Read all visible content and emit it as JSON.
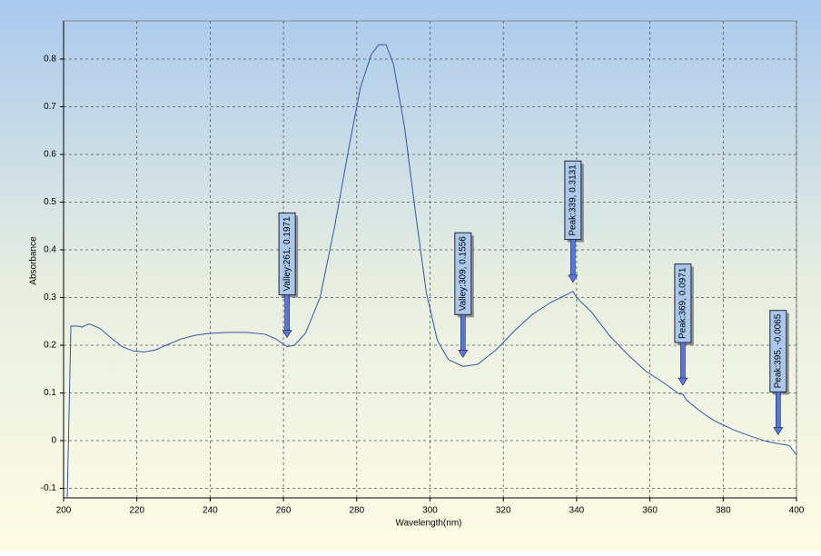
{
  "chart_data": {
    "type": "line",
    "x_label": "Wavelength(nm)",
    "y_label": "Absorbance",
    "xlim": [
      200,
      400
    ],
    "xticks": [
      200,
      220,
      240,
      260,
      280,
      300,
      320,
      340,
      360,
      380,
      400
    ],
    "ylim": [
      -0.12,
      0.88
    ],
    "yticks": [
      -0.1,
      0,
      0.1,
      0.2,
      0.3,
      0.4,
      0.5,
      0.6,
      0.7,
      0.8
    ],
    "grid": true,
    "series": [
      {
        "color": "#3355aa",
        "x": [
          201,
          202,
          204,
          205,
          207,
          210,
          213,
          216,
          219,
          222,
          225,
          228,
          232,
          236,
          240,
          245,
          250,
          255,
          258,
          261,
          263,
          266,
          270,
          274,
          278,
          281,
          284,
          286,
          288,
          290,
          293,
          296,
          299,
          302,
          305,
          309,
          313,
          318,
          323,
          328,
          333,
          337,
          339,
          340,
          344,
          349,
          354,
          359,
          364,
          368,
          369,
          370,
          374,
          378,
          383,
          388,
          392,
          395,
          398,
          400
        ],
        "values": [
          -0.12,
          0.24,
          0.24,
          0.238,
          0.245,
          0.235,
          0.215,
          0.197,
          0.188,
          0.186,
          0.19,
          0.2,
          0.213,
          0.221,
          0.225,
          0.227,
          0.227,
          0.223,
          0.213,
          0.1971,
          0.2,
          0.225,
          0.3,
          0.45,
          0.62,
          0.74,
          0.81,
          0.83,
          0.83,
          0.79,
          0.66,
          0.48,
          0.31,
          0.21,
          0.17,
          0.1556,
          0.16,
          0.19,
          0.23,
          0.265,
          0.29,
          0.305,
          0.3131,
          0.3,
          0.27,
          0.22,
          0.18,
          0.145,
          0.12,
          0.098,
          0.0971,
          0.085,
          0.06,
          0.04,
          0.022,
          0.008,
          -0.002,
          -0.0065,
          -0.01,
          -0.03
        ]
      }
    ],
    "annotations": [
      {
        "text": "Valley:261, 0.1971",
        "x": 261,
        "y": 0.1971
      },
      {
        "text": "Valley:309, 0.1556",
        "x": 309,
        "y": 0.1556
      },
      {
        "text": "Peak:339, 0.3131",
        "x": 339,
        "y": 0.3131
      },
      {
        "text": "Peak:369, 0.0971",
        "x": 369,
        "y": 0.0971
      },
      {
        "text": "Peak:395, -0.0065",
        "x": 395,
        "y": -0.0065
      }
    ]
  }
}
